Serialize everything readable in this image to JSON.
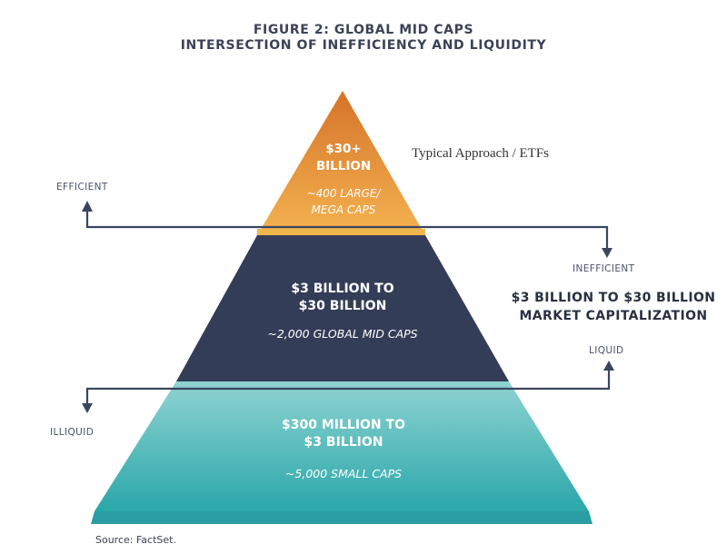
{
  "title": {
    "line1": "FIGURE 2: GLOBAL MID CAPS",
    "line2": "INTERSECTION OF INEFFICIENCY AND LIQUIDITY"
  },
  "tiers": {
    "top": {
      "line1": "$30+",
      "line2": "BILLION",
      "sub1": "~400 LARGE/",
      "sub2": "MEGA CAPS"
    },
    "middle": {
      "line1": "$3 BILLION TO",
      "line2": "$30 BILLION",
      "sub1": "~2,000 GLOBAL MID CAPS"
    },
    "bottom": {
      "line1": "$300 MILLION TO",
      "line2": "$3 BILLION",
      "sub1": "~5,000 SMALL CAPS"
    }
  },
  "labels": {
    "efficient": "EFFICIENT",
    "inefficient": "INEFFICIENT",
    "liquid": "LIQUID",
    "illiquid": "ILLIQUID",
    "approach": "Typical Approach / ETFs",
    "mktcap_line1": "$3 BILLION TO $30 BILLION",
    "mktcap_line2": "MARKET CAPITALIZATION"
  },
  "source": "Source: FactSet.",
  "colors": {
    "top_from": "#d5732a",
    "top_to": "#f3b14f",
    "middle": "#343d57",
    "bottom_from": "#8fd3d1",
    "bottom_to": "#2aa7aa",
    "arrow": "#3b4560"
  }
}
